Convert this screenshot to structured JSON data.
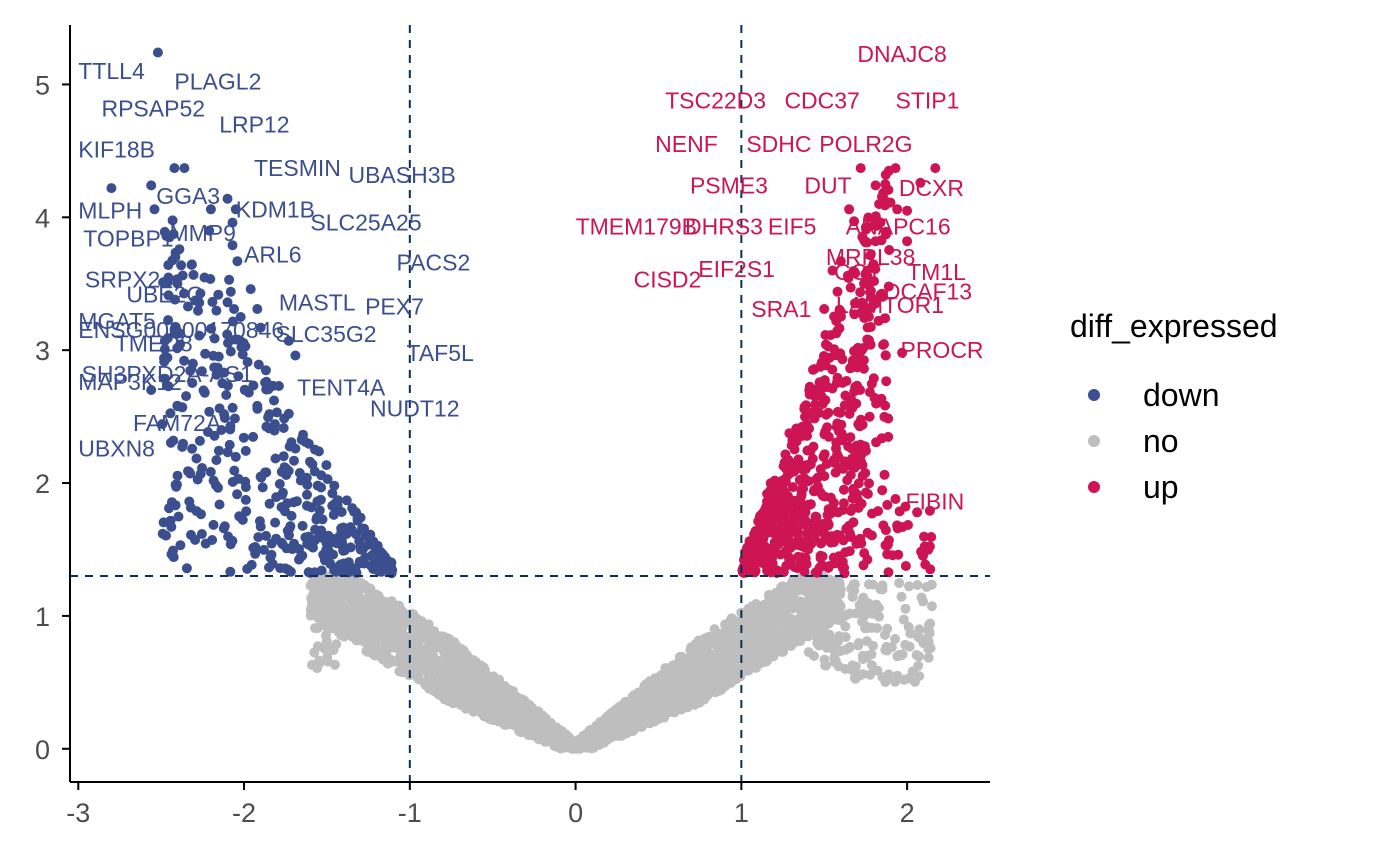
{
  "chart_data": {
    "type": "scatter",
    "title": "",
    "xlabel": "",
    "ylabel": "",
    "xlim": [
      -3.05,
      2.5
    ],
    "ylim": [
      -0.25,
      5.5
    ],
    "x_ticks": [
      -3,
      -2,
      -1,
      0,
      1,
      2
    ],
    "x_tick_labels": [
      "-3",
      "-2",
      "-1",
      "0",
      "1",
      "2"
    ],
    "y_ticks": [
      0,
      1,
      2,
      3,
      4,
      5
    ],
    "y_tick_labels": [
      "0",
      "1",
      "2",
      "3",
      "4",
      "5"
    ],
    "thresholds": {
      "x": [
        -1,
        1
      ],
      "y": 1.3
    },
    "grid": false,
    "legend": {
      "title": "diff_expressed",
      "placement": "right",
      "items": [
        {
          "label": "down",
          "color": "#3b4f8f"
        },
        {
          "label": "no",
          "color": "#bebebe"
        },
        {
          "label": "up",
          "color": "#cc1552"
        }
      ]
    },
    "colors": {
      "down": "#3b4f8f",
      "no": "#bebebe",
      "up": "#cc1552",
      "threshold": "#0b2e5c"
    },
    "labeled_points": [
      {
        "gene": "TTLL4",
        "x": -2.52,
        "y": 5.24,
        "group": "down"
      },
      {
        "gene": "PLAGL2",
        "x": -2.36,
        "y": 4.37,
        "group": "down"
      },
      {
        "gene": "RPSAP52",
        "x": -2.42,
        "y": 4.37,
        "group": "down"
      },
      {
        "gene": "LRP12",
        "x": -2.1,
        "y": 4.14,
        "group": "down"
      },
      {
        "gene": "KIF18B",
        "x": -2.8,
        "y": 4.22,
        "group": "down"
      },
      {
        "gene": "TESMIN",
        "x": -2.05,
        "y": 4.06,
        "group": "down"
      },
      {
        "gene": "UBASH3B",
        "x": -2.56,
        "y": 4.24,
        "group": "down"
      },
      {
        "gene": "GGA3",
        "x": -2.2,
        "y": 4.06,
        "group": "down"
      },
      {
        "gene": "MLPH",
        "x": -2.54,
        "y": 4.06,
        "group": "down"
      },
      {
        "gene": "KDM1B",
        "x": -2.07,
        "y": 3.96,
        "group": "down"
      },
      {
        "gene": "SLC25A25",
        "x": -2.21,
        "y": 3.9,
        "group": "down"
      },
      {
        "gene": "TOPBP1",
        "x": -2.45,
        "y": 3.85,
        "group": "down"
      },
      {
        "gene": "MMP9",
        "x": -2.39,
        "y": 3.76,
        "group": "down"
      },
      {
        "gene": "ARL6",
        "x": -2.07,
        "y": 3.79,
        "group": "down"
      },
      {
        "gene": "PACS2",
        "x": -2.04,
        "y": 3.67,
        "group": "down"
      },
      {
        "gene": "SRPX2",
        "x": -2.09,
        "y": 3.53,
        "group": "down"
      },
      {
        "gene": "UBE2O",
        "x": -2.08,
        "y": 3.44,
        "group": "down"
      },
      {
        "gene": "MASTL",
        "x": -1.96,
        "y": 3.46,
        "group": "down"
      },
      {
        "gene": "PEX7",
        "x": -2.1,
        "y": 3.36,
        "group": "down"
      },
      {
        "gene": "MGAT5",
        "x": -2.06,
        "y": 3.31,
        "group": "down"
      },
      {
        "gene": "ENSG00000170846",
        "x": -1.92,
        "y": 3.31,
        "group": "down"
      },
      {
        "gene": "TMED8",
        "x": -2.02,
        "y": 3.25,
        "group": "down"
      },
      {
        "gene": "SLC35G2",
        "x": -1.9,
        "y": 3.17,
        "group": "down"
      },
      {
        "gene": "TAF5L",
        "x": -1.73,
        "y": 3.07,
        "group": "down"
      },
      {
        "gene": "SH3PXD2A-AS1",
        "x": -2.27,
        "y": 3.11,
        "group": "down"
      },
      {
        "gene": "MAP3K12",
        "x": -2.08,
        "y": 2.99,
        "group": "down"
      },
      {
        "gene": "TENT4A",
        "x": -1.69,
        "y": 2.96,
        "group": "down"
      },
      {
        "gene": "FAM72A",
        "x": -2.18,
        "y": 2.87,
        "group": "down"
      },
      {
        "gene": "NUDT12",
        "x": -1.79,
        "y": 2.73,
        "group": "down"
      },
      {
        "gene": "UBXN8",
        "x": -2.56,
        "y": 2.7,
        "group": "down"
      },
      {
        "gene": "DNAJC8",
        "x": 2.17,
        "y": 4.37,
        "group": "up"
      },
      {
        "gene": "TSC22D3",
        "x": 1.93,
        "y": 4.37,
        "group": "up"
      },
      {
        "gene": "CDC37",
        "x": 1.72,
        "y": 4.37,
        "group": "up"
      },
      {
        "gene": "STIP1",
        "x": 2.08,
        "y": 4.26,
        "group": "up"
      },
      {
        "gene": "NENF",
        "x": 1.65,
        "y": 4.06,
        "group": "up"
      },
      {
        "gene": "SDHC",
        "x": 1.81,
        "y": 4.24,
        "group": "up"
      },
      {
        "gene": "POLR2G",
        "x": 1.94,
        "y": 4.06,
        "group": "up"
      },
      {
        "gene": "PSME3",
        "x": 1.68,
        "y": 3.97,
        "group": "up"
      },
      {
        "gene": "DUT",
        "x": 1.8,
        "y": 3.94,
        "group": "up"
      },
      {
        "gene": "DCXR",
        "x": 2.0,
        "y": 4.05,
        "group": "up"
      },
      {
        "gene": "TMEM179B",
        "x": 1.6,
        "y": 3.67,
        "group": "up"
      },
      {
        "gene": "DHRS3",
        "x": 1.76,
        "y": 3.56,
        "group": "up"
      },
      {
        "gene": "EIF5",
        "x": 1.81,
        "y": 3.82,
        "group": "up"
      },
      {
        "gene": "ANAPC16",
        "x": 2.0,
        "y": 3.82,
        "group": "up"
      },
      {
        "gene": "MRPL38",
        "x": 1.76,
        "y": 3.6,
        "group": "up"
      },
      {
        "gene": "EIF2S1",
        "x": 1.55,
        "y": 3.6,
        "group": "up"
      },
      {
        "gene": "CCT",
        "x": 1.74,
        "y": 3.5,
        "group": "up"
      },
      {
        "gene": "TM1L",
        "x": 1.8,
        "y": 3.52,
        "group": "up"
      },
      {
        "gene": "CISD2",
        "x": 1.58,
        "y": 3.44,
        "group": "up"
      },
      {
        "gene": "DCAF13",
        "x": 1.78,
        "y": 3.32,
        "group": "up"
      },
      {
        "gene": "LAMTOR1",
        "x": 1.72,
        "y": 3.28,
        "group": "up"
      },
      {
        "gene": "SRA1",
        "x": 1.5,
        "y": 3.31,
        "group": "up"
      },
      {
        "gene": "PROCR",
        "x": 1.97,
        "y": 2.98,
        "group": "up"
      },
      {
        "gene": "FIBIN",
        "x": 1.93,
        "y": 1.88,
        "group": "up"
      }
    ],
    "label_positions": [
      {
        "gene": "TTLL4",
        "x": -3.0,
        "y": 5.04
      },
      {
        "gene": "PLAGL2",
        "x": -2.42,
        "y": 4.96
      },
      {
        "gene": "RPSAP52",
        "x": -2.86,
        "y": 4.76
      },
      {
        "gene": "LRP12",
        "x": -2.15,
        "y": 4.64
      },
      {
        "gene": "KIF18B",
        "x": -3.0,
        "y": 4.45
      },
      {
        "gene": "TESMIN",
        "x": -1.94,
        "y": 4.31
      },
      {
        "gene": "UBASH3B",
        "x": -1.37,
        "y": 4.26
      },
      {
        "gene": "GGA3",
        "x": -2.53,
        "y": 4.1
      },
      {
        "gene": "MLPH",
        "x": -3.0,
        "y": 3.99
      },
      {
        "gene": "KDM1B",
        "x": -2.05,
        "y": 4.0
      },
      {
        "gene": "SLC25A25",
        "x": -1.6,
        "y": 3.9
      },
      {
        "gene": "TOPBP1",
        "x": -2.97,
        "y": 3.78
      },
      {
        "gene": "MMP9",
        "x": -2.45,
        "y": 3.82
      },
      {
        "gene": "ARL6",
        "x": -2.0,
        "y": 3.66
      },
      {
        "gene": "PACS2",
        "x": -1.08,
        "y": 3.6
      },
      {
        "gene": "SRPX2",
        "x": -2.96,
        "y": 3.47
      },
      {
        "gene": "UBE2O",
        "x": -2.71,
        "y": 3.36
      },
      {
        "gene": "MASTL",
        "x": -1.79,
        "y": 3.3
      },
      {
        "gene": "PEX7",
        "x": -1.27,
        "y": 3.27
      },
      {
        "gene": "MGAT5",
        "x": -3.0,
        "y": 3.16
      },
      {
        "gene": "ENSG00000170846",
        "x": -3.0,
        "y": 3.09
      },
      {
        "gene": "TMED8",
        "x": -2.78,
        "y": 2.99
      },
      {
        "gene": "SLC35G2",
        "x": -1.81,
        "y": 3.06
      },
      {
        "gene": "TAF5L",
        "x": -1.02,
        "y": 2.92
      },
      {
        "gene": "SH3PXD2A-AS1",
        "x": -2.98,
        "y": 2.76
      },
      {
        "gene": "MAP3K12",
        "x": -3.0,
        "y": 2.7
      },
      {
        "gene": "TENT4A",
        "x": -1.68,
        "y": 2.66
      },
      {
        "gene": "FAM72A",
        "x": -2.67,
        "y": 2.39
      },
      {
        "gene": "NUDT12",
        "x": -1.24,
        "y": 2.5
      },
      {
        "gene": "UBXN8",
        "x": -3.0,
        "y": 2.2
      },
      {
        "gene": "DNAJC8",
        "x": 1.7,
        "y": 5.17
      },
      {
        "gene": "TSC22D3",
        "x": 0.54,
        "y": 4.82
      },
      {
        "gene": "CDC37",
        "x": 1.26,
        "y": 4.82
      },
      {
        "gene": "STIP1",
        "x": 1.93,
        "y": 4.82
      },
      {
        "gene": "NENF",
        "x": 0.48,
        "y": 4.49
      },
      {
        "gene": "SDHC",
        "x": 1.03,
        "y": 4.49
      },
      {
        "gene": "POLR2G",
        "x": 1.47,
        "y": 4.49
      },
      {
        "gene": "PSME3",
        "x": 0.69,
        "y": 4.18
      },
      {
        "gene": "DUT",
        "x": 1.38,
        "y": 4.18
      },
      {
        "gene": "DCXR",
        "x": 1.95,
        "y": 4.16
      },
      {
        "gene": "TMEM179B",
        "x": 0.0,
        "y": 3.87
      },
      {
        "gene": "DHRS3",
        "x": 0.66,
        "y": 3.87
      },
      {
        "gene": "EIF5",
        "x": 1.16,
        "y": 3.87
      },
      {
        "gene": "ANAPC16",
        "x": 1.63,
        "y": 3.87
      },
      {
        "gene": "MRPL38",
        "x": 1.51,
        "y": 3.64
      },
      {
        "gene": "EIF2S1",
        "x": 0.74,
        "y": 3.55
      },
      {
        "gene": "CCT",
        "x": 1.56,
        "y": 3.53
      },
      {
        "gene": "TM1L",
        "x": 2.0,
        "y": 3.53
      },
      {
        "gene": "CISD2",
        "x": 0.35,
        "y": 3.47
      },
      {
        "gene": "DCAF13",
        "x": 1.86,
        "y": 3.38
      },
      {
        "gene": "LAMTOR1",
        "x": 1.57,
        "y": 3.28
      },
      {
        "gene": "SRA1",
        "x": 1.06,
        "y": 3.25
      },
      {
        "gene": "PROCR",
        "x": 1.96,
        "y": 2.94
      },
      {
        "gene": "FIBIN",
        "x": 1.99,
        "y": 1.8
      }
    ]
  }
}
